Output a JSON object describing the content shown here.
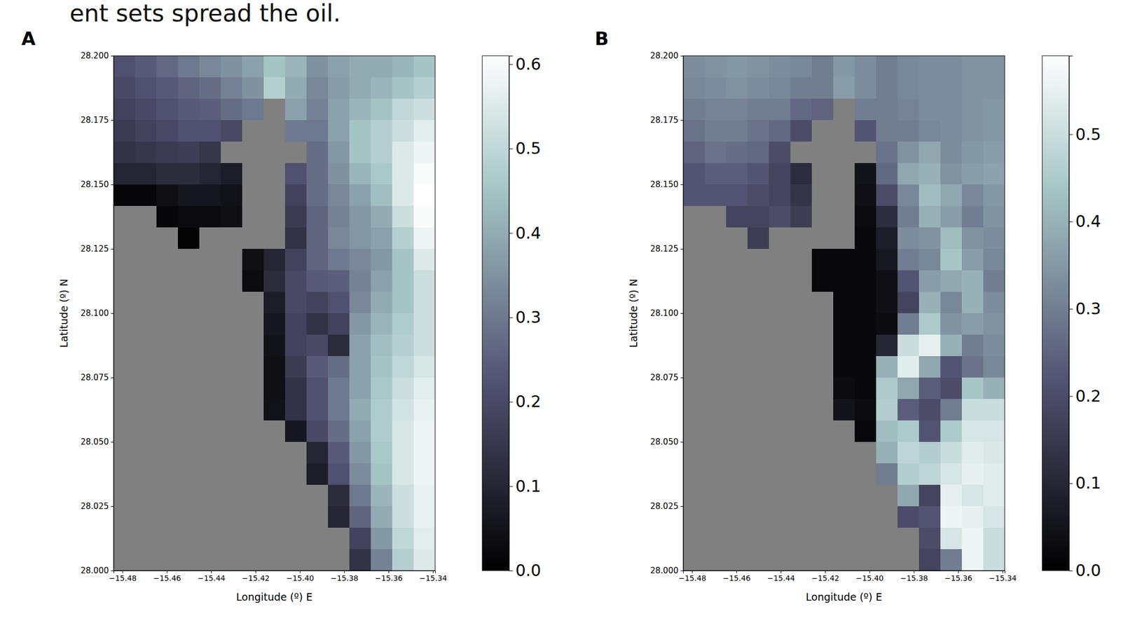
{
  "caption": "ent sets spread the oil.",
  "chart_data": [
    {
      "type": "heatmap",
      "panel_label": "A",
      "x_label": "Longitude (º) E",
      "y_label": "Latitude (º) N",
      "xlim": [
        -15.484,
        -15.339
      ],
      "ylim": [
        28.0,
        28.2
      ],
      "xticks": [
        {
          "value": -15.48,
          "label": "−15.48"
        },
        {
          "value": -15.46,
          "label": "−15.46"
        },
        {
          "value": -15.44,
          "label": "−15.44"
        },
        {
          "value": -15.42,
          "label": "−15.42"
        },
        {
          "value": -15.4,
          "label": "−15.40"
        },
        {
          "value": -15.38,
          "label": "−15.38"
        },
        {
          "value": -15.36,
          "label": "−15.36"
        },
        {
          "value": -15.34,
          "label": "−15.34"
        }
      ],
      "yticks": [
        {
          "value": 28.0,
          "label": "28.000"
        },
        {
          "value": 28.025,
          "label": "28.025"
        },
        {
          "value": 28.05,
          "label": "28.050"
        },
        {
          "value": 28.075,
          "label": "28.075"
        },
        {
          "value": 28.1,
          "label": "28.100"
        },
        {
          "value": 28.125,
          "label": "28.125"
        },
        {
          "value": 28.15,
          "label": "28.150"
        },
        {
          "value": 28.175,
          "label": "28.175"
        },
        {
          "value": 28.2,
          "label": "28.200"
        }
      ],
      "x": [
        -15.4792,
        -15.4695,
        -15.4598,
        -15.4502,
        -15.4405,
        -15.4308,
        -15.4212,
        -15.4115,
        -15.4018,
        -15.3922,
        -15.3825,
        -15.3728,
        -15.3632,
        -15.3535,
        -15.3438
      ],
      "y": [
        28.1958,
        28.1875,
        28.1792,
        28.1708,
        28.1625,
        28.1542,
        28.1458,
        28.1375,
        28.1292,
        28.1208,
        28.1125,
        28.1042,
        28.0958,
        28.0875,
        28.0792,
        28.0708,
        28.0625,
        28.0542,
        28.0458,
        28.0375,
        28.0292,
        28.0208,
        28.0125,
        28.0042
      ],
      "z": [
        [
          0.22,
          0.24,
          0.27,
          0.3,
          0.33,
          0.35,
          0.38,
          0.45,
          0.42,
          0.35,
          0.38,
          0.4,
          0.4,
          0.42,
          0.45
        ],
        [
          0.2,
          0.22,
          0.24,
          0.26,
          0.28,
          0.32,
          0.35,
          0.48,
          0.4,
          0.33,
          0.37,
          0.4,
          0.42,
          0.45,
          0.48
        ],
        [
          0.18,
          0.2,
          0.22,
          0.24,
          0.25,
          0.28,
          0.3,
          null,
          0.38,
          0.32,
          0.38,
          0.42,
          0.45,
          0.5,
          0.52
        ],
        [
          0.16,
          0.18,
          0.2,
          0.22,
          0.22,
          0.2,
          null,
          null,
          0.3,
          0.3,
          0.38,
          0.45,
          0.48,
          0.52,
          0.56
        ],
        [
          0.14,
          0.15,
          0.16,
          0.17,
          0.15,
          null,
          null,
          null,
          null,
          0.28,
          0.36,
          0.45,
          0.48,
          0.55,
          0.58
        ],
        [
          0.1,
          0.1,
          0.12,
          0.12,
          0.1,
          0.08,
          null,
          null,
          0.22,
          0.28,
          0.35,
          0.42,
          0.46,
          0.55,
          0.6
        ],
        [
          0.02,
          0.02,
          0.04,
          0.06,
          0.06,
          0.05,
          null,
          null,
          0.18,
          0.28,
          0.33,
          0.38,
          0.44,
          0.55,
          0.61
        ],
        [
          null,
          null,
          0.02,
          0.03,
          0.03,
          0.04,
          null,
          null,
          0.16,
          0.26,
          0.32,
          0.36,
          0.4,
          0.52,
          0.6
        ],
        [
          null,
          null,
          null,
          0.01,
          null,
          null,
          null,
          null,
          0.14,
          0.26,
          0.33,
          0.36,
          0.38,
          0.48,
          0.58
        ],
        [
          null,
          null,
          null,
          null,
          null,
          null,
          0.04,
          0.1,
          0.18,
          0.26,
          0.3,
          0.33,
          0.36,
          0.45,
          0.55
        ],
        [
          null,
          null,
          null,
          null,
          null,
          null,
          0.03,
          0.12,
          0.2,
          0.24,
          0.25,
          0.32,
          0.38,
          0.45,
          0.52
        ],
        [
          null,
          null,
          null,
          null,
          null,
          null,
          null,
          0.08,
          0.2,
          0.18,
          0.22,
          0.33,
          0.4,
          0.45,
          0.52
        ],
        [
          null,
          null,
          null,
          null,
          null,
          null,
          null,
          0.06,
          0.18,
          0.14,
          0.18,
          0.36,
          0.42,
          0.47,
          0.52
        ],
        [
          null,
          null,
          null,
          null,
          null,
          null,
          null,
          0.05,
          0.18,
          0.2,
          0.12,
          0.38,
          0.44,
          0.48,
          0.52
        ],
        [
          null,
          null,
          null,
          null,
          null,
          null,
          null,
          0.04,
          0.16,
          0.24,
          0.28,
          0.38,
          0.45,
          0.5,
          0.54
        ],
        [
          null,
          null,
          null,
          null,
          null,
          null,
          null,
          0.04,
          0.14,
          0.22,
          0.3,
          0.38,
          0.46,
          0.52,
          0.56
        ],
        [
          null,
          null,
          null,
          null,
          null,
          null,
          null,
          0.05,
          0.14,
          0.22,
          0.3,
          0.4,
          0.47,
          0.53,
          0.57
        ],
        [
          null,
          null,
          null,
          null,
          null,
          null,
          null,
          null,
          0.06,
          0.2,
          0.28,
          0.38,
          0.47,
          0.54,
          0.58
        ],
        [
          null,
          null,
          null,
          null,
          null,
          null,
          null,
          null,
          null,
          0.1,
          0.24,
          0.36,
          0.46,
          0.54,
          0.58
        ],
        [
          null,
          null,
          null,
          null,
          null,
          null,
          null,
          null,
          null,
          0.08,
          0.22,
          0.34,
          0.45,
          0.54,
          0.58
        ],
        [
          null,
          null,
          null,
          null,
          null,
          null,
          null,
          null,
          null,
          null,
          0.12,
          0.3,
          0.42,
          0.52,
          0.57
        ],
        [
          null,
          null,
          null,
          null,
          null,
          null,
          null,
          null,
          null,
          null,
          0.1,
          0.26,
          0.4,
          0.52,
          0.57
        ],
        [
          null,
          null,
          null,
          null,
          null,
          null,
          null,
          null,
          null,
          null,
          null,
          0.18,
          0.36,
          0.5,
          0.56
        ],
        [
          null,
          null,
          null,
          null,
          null,
          null,
          null,
          null,
          null,
          null,
          null,
          0.14,
          0.32,
          0.48,
          0.55
        ]
      ],
      "colorbar": {
        "range": [
          0,
          0.61
        ],
        "ticks": [
          {
            "value": 0,
            "label": "0.0"
          },
          0.1,
          0.2,
          0.3,
          0.4,
          0.5,
          0.6
        ]
      }
    },
    {
      "type": "heatmap",
      "panel_label": "B",
      "x_label": "Longitude (º) E",
      "y_label": "Latitude (º) N",
      "xlim": [
        -15.484,
        -15.339
      ],
      "ylim": [
        28.0,
        28.2
      ],
      "xticks": [
        {
          "value": -15.48,
          "label": "−15.48"
        },
        {
          "value": -15.46,
          "label": "−15.46"
        },
        {
          "value": -15.44,
          "label": "−15.44"
        },
        {
          "value": -15.42,
          "label": "−15.42"
        },
        {
          "value": -15.4,
          "label": "−15.40"
        },
        {
          "value": -15.38,
          "label": "−15.38"
        },
        {
          "value": -15.36,
          "label": "−15.36"
        },
        {
          "value": -15.34,
          "label": "−15.34"
        }
      ],
      "yticks": [
        {
          "value": 28.0,
          "label": "28.000"
        },
        {
          "value": 28.025,
          "label": "28.025"
        },
        {
          "value": 28.05,
          "label": "28.050"
        },
        {
          "value": 28.075,
          "label": "28.075"
        },
        {
          "value": 28.1,
          "label": "28.100"
        },
        {
          "value": 28.125,
          "label": "28.125"
        },
        {
          "value": 28.15,
          "label": "28.150"
        },
        {
          "value": 28.175,
          "label": "28.175"
        },
        {
          "value": 28.2,
          "label": "28.200"
        }
      ],
      "x": [
        -15.4792,
        -15.4695,
        -15.4598,
        -15.4502,
        -15.4405,
        -15.4308,
        -15.4212,
        -15.4115,
        -15.4018,
        -15.3922,
        -15.3825,
        -15.3728,
        -15.3632,
        -15.3535,
        -15.3438
      ],
      "y": [
        28.1958,
        28.1875,
        28.1792,
        28.1708,
        28.1625,
        28.1542,
        28.1458,
        28.1375,
        28.1292,
        28.1208,
        28.1125,
        28.1042,
        28.0958,
        28.0875,
        28.0792,
        28.0708,
        28.0625,
        28.0542,
        28.0458,
        28.0375,
        28.0292,
        28.0208,
        28.0125,
        28.0042
      ],
      "z": [
        [
          0.33,
          0.34,
          0.35,
          0.34,
          0.33,
          0.32,
          0.3,
          0.35,
          0.33,
          0.3,
          0.32,
          0.33,
          0.33,
          0.34,
          0.34
        ],
        [
          0.32,
          0.33,
          0.34,
          0.33,
          0.32,
          0.3,
          0.3,
          0.36,
          0.33,
          0.3,
          0.32,
          0.33,
          0.33,
          0.34,
          0.34
        ],
        [
          0.3,
          0.31,
          0.31,
          0.3,
          0.3,
          0.26,
          0.25,
          null,
          0.3,
          0.3,
          0.31,
          0.33,
          0.33,
          0.34,
          0.35
        ],
        [
          0.28,
          0.3,
          0.3,
          0.28,
          0.26,
          0.2,
          null,
          null,
          0.22,
          0.3,
          0.3,
          0.32,
          0.33,
          0.34,
          0.35
        ],
        [
          0.25,
          0.28,
          0.27,
          0.26,
          0.2,
          null,
          null,
          null,
          null,
          0.28,
          0.34,
          0.38,
          0.33,
          0.35,
          0.36
        ],
        [
          0.22,
          0.24,
          0.24,
          0.22,
          0.18,
          0.12,
          null,
          null,
          0.05,
          0.26,
          0.38,
          0.4,
          0.34,
          0.36,
          0.37
        ],
        [
          0.22,
          0.22,
          0.22,
          0.2,
          0.18,
          0.14,
          null,
          null,
          0.04,
          0.2,
          0.32,
          0.42,
          0.38,
          0.32,
          0.35
        ],
        [
          null,
          null,
          0.18,
          0.18,
          0.2,
          0.16,
          null,
          null,
          0.03,
          0.12,
          0.3,
          0.4,
          0.36,
          0.3,
          0.34
        ],
        [
          null,
          null,
          null,
          0.16,
          null,
          null,
          null,
          null,
          0.02,
          0.08,
          0.33,
          0.34,
          0.42,
          0.34,
          0.33
        ],
        [
          null,
          null,
          null,
          null,
          null,
          null,
          0.02,
          0.02,
          0.02,
          0.06,
          0.3,
          0.32,
          0.44,
          0.36,
          0.32
        ],
        [
          null,
          null,
          null,
          null,
          null,
          null,
          0.02,
          0.02,
          0.02,
          0.04,
          0.22,
          0.36,
          0.38,
          0.4,
          0.3
        ],
        [
          null,
          null,
          null,
          null,
          null,
          null,
          null,
          0.02,
          0.02,
          0.04,
          0.18,
          0.4,
          0.32,
          0.4,
          0.33
        ],
        [
          null,
          null,
          null,
          null,
          null,
          null,
          null,
          0.02,
          0.02,
          0.03,
          0.3,
          0.45,
          0.34,
          0.36,
          0.34
        ],
        [
          null,
          null,
          null,
          null,
          null,
          null,
          null,
          0.02,
          0.02,
          0.1,
          0.5,
          0.55,
          0.4,
          0.3,
          0.33
        ],
        [
          null,
          null,
          null,
          null,
          null,
          null,
          null,
          0.02,
          0.02,
          0.4,
          0.54,
          0.38,
          0.22,
          0.28,
          0.32
        ],
        [
          null,
          null,
          null,
          null,
          null,
          null,
          null,
          0.03,
          0.02,
          0.45,
          0.38,
          0.24,
          0.2,
          0.44,
          0.4
        ],
        [
          null,
          null,
          null,
          null,
          null,
          null,
          null,
          0.05,
          0.03,
          0.46,
          0.24,
          0.2,
          0.3,
          0.5,
          0.5
        ],
        [
          null,
          null,
          null,
          null,
          null,
          null,
          null,
          null,
          0.02,
          0.42,
          0.45,
          0.22,
          0.45,
          0.52,
          0.52
        ],
        [
          null,
          null,
          null,
          null,
          null,
          null,
          null,
          null,
          null,
          0.4,
          0.48,
          0.46,
          0.5,
          0.54,
          0.53
        ],
        [
          null,
          null,
          null,
          null,
          null,
          null,
          null,
          null,
          null,
          0.3,
          0.46,
          0.48,
          0.52,
          0.55,
          0.54
        ],
        [
          null,
          null,
          null,
          null,
          null,
          null,
          null,
          null,
          null,
          null,
          0.38,
          0.18,
          0.55,
          0.52,
          0.54
        ],
        [
          null,
          null,
          null,
          null,
          null,
          null,
          null,
          null,
          null,
          null,
          0.2,
          0.22,
          0.56,
          0.55,
          0.52
        ],
        [
          null,
          null,
          null,
          null,
          null,
          null,
          null,
          null,
          null,
          null,
          null,
          0.2,
          0.52,
          0.56,
          0.5
        ],
        [
          null,
          null,
          null,
          null,
          null,
          null,
          null,
          null,
          null,
          null,
          null,
          0.18,
          0.3,
          0.56,
          0.5
        ]
      ],
      "colorbar": {
        "range": [
          0,
          0.59
        ],
        "ticks": [
          {
            "value": 0,
            "label": "0.0"
          },
          0.1,
          0.2,
          0.3,
          0.4,
          0.5
        ]
      }
    }
  ]
}
